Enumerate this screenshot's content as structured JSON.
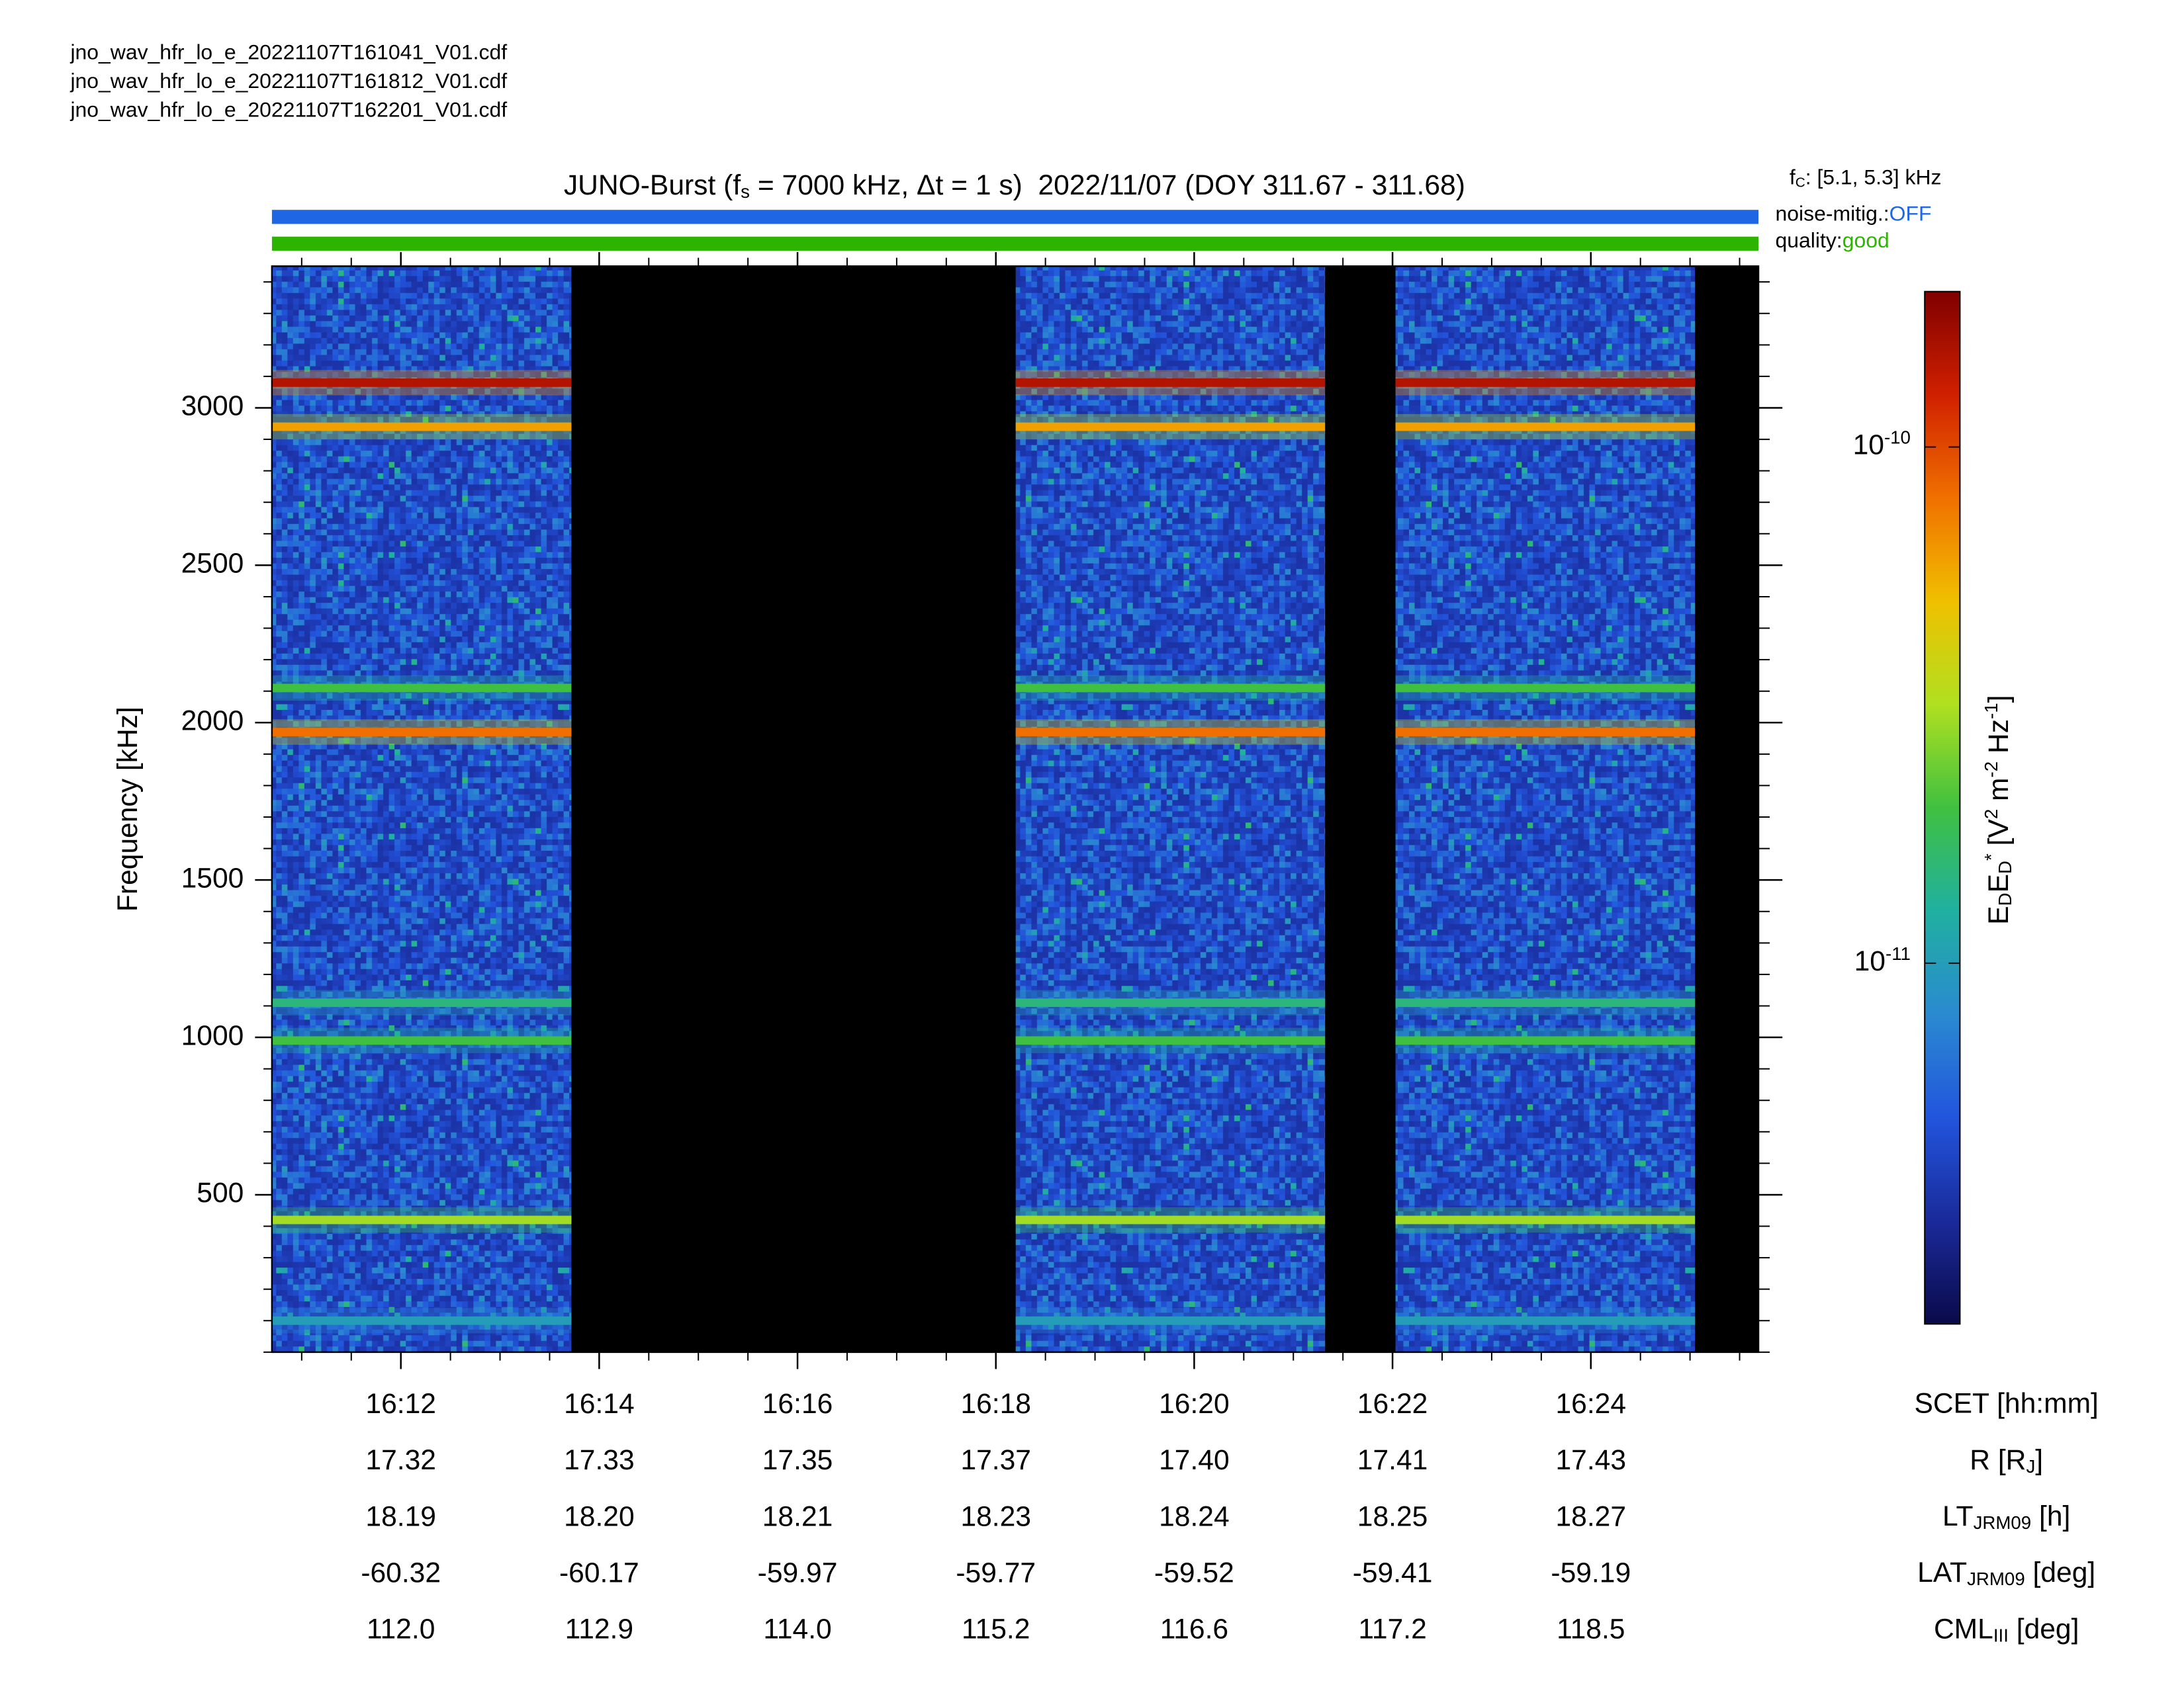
{
  "files": [
    "jno_wav_hfr_lo_e_20221107T161041_V01.cdf",
    "jno_wav_hfr_lo_e_20221107T161812_V01.cdf",
    "jno_wav_hfr_lo_e_20221107T162201_V01.cdf"
  ],
  "chart_data": {
    "type": "spectrogram",
    "title": [
      "JUNO-Burst (f",
      "s",
      " = 7000 kHz, Δt = 1 s)  2022/11/07 (DOY 311.67 - 311.68)"
    ],
    "fc_label": [
      "f",
      "C",
      ": [5.1, 5.3] kHz"
    ],
    "noise_mitigation": [
      "noise-mitig.:",
      "OFF"
    ],
    "quality": [
      "quality:",
      "good"
    ],
    "status_bar_colors": [
      "#1f66e5",
      "#2db400"
    ],
    "ylabel": "Frequency [kHz]",
    "ylim": [
      0,
      3450
    ],
    "yticks": [
      500,
      1000,
      1500,
      2000,
      2500,
      3000
    ],
    "yminor": 100,
    "xlim": [
      970.7,
      985.69
    ],
    "xticks": [
      {
        "value": 972,
        "label": "16:12"
      },
      {
        "value": 974,
        "label": "16:14"
      },
      {
        "value": 976,
        "label": "16:16"
      },
      {
        "value": 978,
        "label": "16:18"
      },
      {
        "value": 980,
        "label": "16:20"
      },
      {
        "value": 982,
        "label": "16:22"
      },
      {
        "value": 984,
        "label": "16:24"
      }
    ],
    "xminor": 0.5,
    "rows": [
      {
        "label": [
          "SCET [hh:mm]"
        ]
      },
      {
        "label": [
          "R [R",
          "J",
          "]"
        ],
        "values": [
          "17.32",
          "17.33",
          "17.35",
          "17.37",
          "17.40",
          "17.41",
          "17.43"
        ]
      },
      {
        "label": [
          "LT",
          "JRM09",
          " [h]"
        ],
        "values": [
          "18.19",
          "18.20",
          "18.21",
          "18.23",
          "18.24",
          "18.25",
          "18.27"
        ]
      },
      {
        "label": [
          "LAT",
          "JRM09",
          " [deg]"
        ],
        "values": [
          "-60.32",
          "-60.17",
          "-59.97",
          "-59.77",
          "-59.52",
          "-59.41",
          "-59.19"
        ]
      },
      {
        "label": [
          "CML",
          "III",
          " [deg]"
        ],
        "values": [
          "112.0",
          "112.9",
          "114.0",
          "115.2",
          "116.6",
          "117.2",
          "118.5"
        ]
      }
    ],
    "data_intervals": [
      [
        970.7,
        973.72
      ],
      [
        978.2,
        981.32
      ],
      [
        982.03,
        985.05
      ]
    ],
    "bands": [
      {
        "frequency": 3080,
        "intensity": 1.5e-10
      },
      {
        "frequency": 2940,
        "intensity": 6e-11
      },
      {
        "frequency": 2110,
        "intensity": 2e-11
      },
      {
        "frequency": 1970,
        "intensity": 8e-11
      },
      {
        "frequency": 1110,
        "intensity": 1.5e-11
      },
      {
        "frequency": 990,
        "intensity": 2e-11
      },
      {
        "frequency": 420,
        "intensity": 3e-11
      },
      {
        "frequency": 100,
        "intensity": 1e-11
      }
    ],
    "colorbar": {
      "label": [
        "E",
        "D",
        "E",
        "D",
        "*",
        " [V",
        "2",
        " m",
        "-2",
        " Hz",
        "-1",
        "]"
      ],
      "clim": [
        2e-12,
        2e-10
      ],
      "log": true,
      "ticks": [
        {
          "value": 1e-10,
          "label": "10",
          "exponent": "-10"
        },
        {
          "value": 1e-11,
          "label": "10",
          "exponent": "-11"
        }
      ],
      "colormap": [
        "#0a0a4a",
        "#1a2a9a",
        "#2255dd",
        "#2a8ad0",
        "#20b0a0",
        "#40c040",
        "#b0e020",
        "#f0c000",
        "#f07000",
        "#d02000",
        "#800000"
      ]
    }
  }
}
